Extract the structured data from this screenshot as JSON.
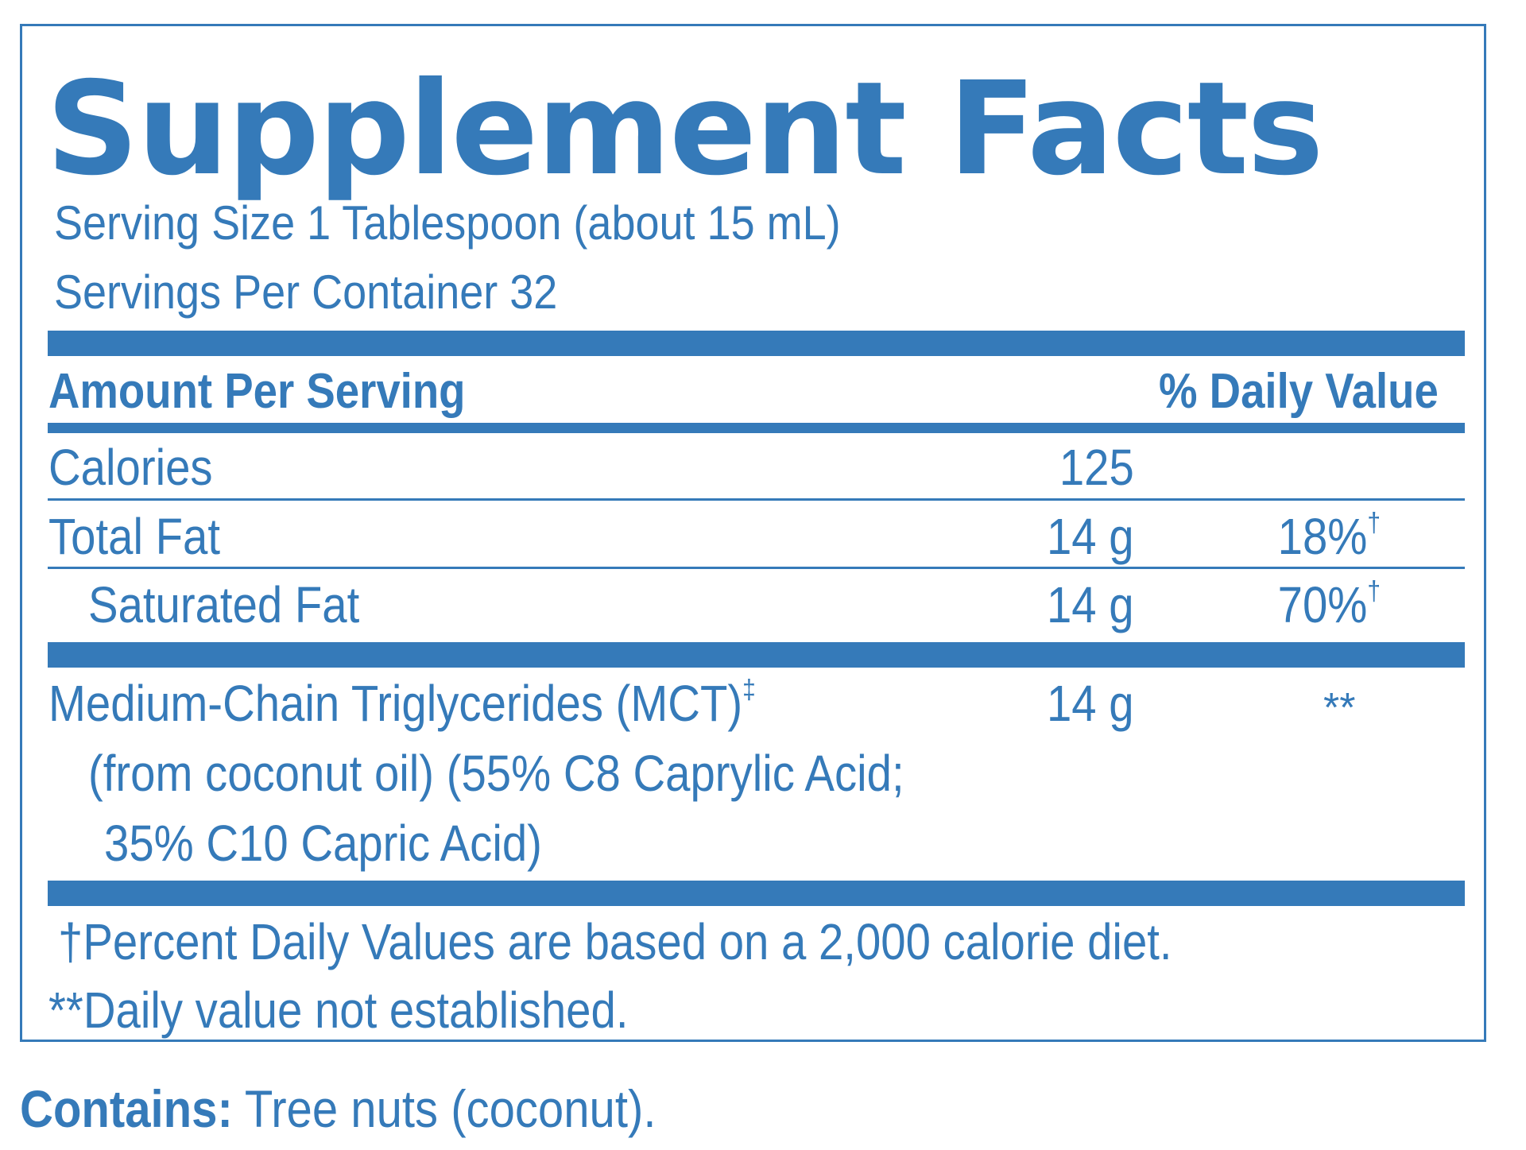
{
  "title": "Supplement Facts",
  "serving_size": "Serving Size 1 Tablespoon (about 15 mL)",
  "servings_per_container": "Servings Per Container 32",
  "header": {
    "amount_label": "Amount Per Serving",
    "dv_label": "% Daily Value"
  },
  "rows": [
    {
      "name": "Calories",
      "amount": "125",
      "dv": ""
    },
    {
      "name": "Total Fat",
      "amount": "14 g",
      "dv": "18%",
      "dv_mark": "†"
    },
    {
      "name": "Saturated Fat",
      "amount": "14 g",
      "dv": "70%",
      "dv_mark": "†"
    },
    {
      "name": "Medium-Chain Triglycerides (MCT)",
      "name_mark": "‡",
      "amount": "14 g",
      "dv": "**",
      "detail_line1": "(from coconut oil) (55% C8 Caprylic Acid;",
      "detail_line2": "35% C10 Capric Acid)"
    }
  ],
  "notes": {
    "percent_note": "†Percent Daily Values are based on a 2,000 calorie diet.",
    "dv_note": "**Daily value not established."
  },
  "contains": {
    "label": "Contains:",
    "text": " Tree nuts (coconut)."
  },
  "colors": {
    "brand_blue": "#357ab9",
    "background": "#ffffff"
  }
}
